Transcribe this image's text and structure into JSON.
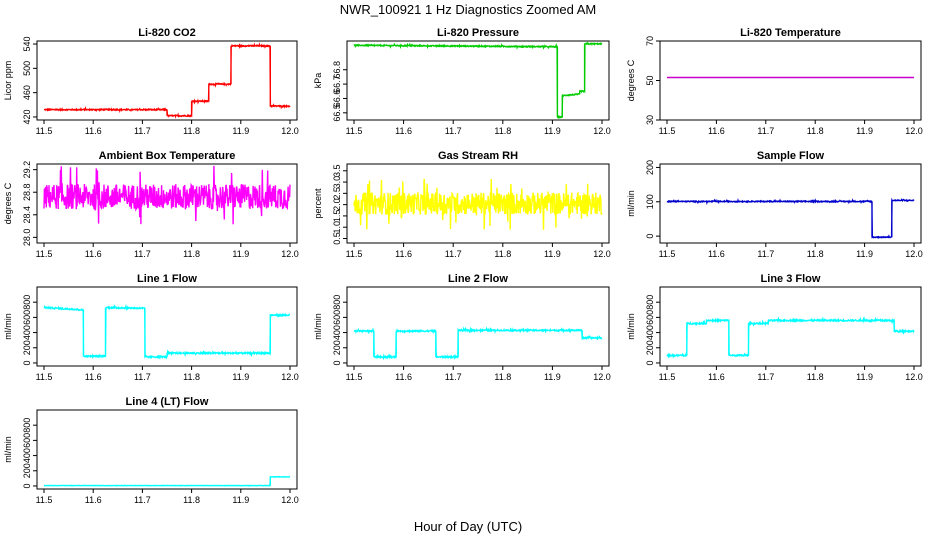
{
  "figure": {
    "title": "NWR_100921  1 Hz Diagnostics Zoomed AM",
    "xlabel": "Hour of Day (UTC)"
  },
  "chart_data": [
    {
      "type": "line",
      "title": "Li-820 CO2",
      "ylabel": "Licor ppm",
      "color": "#ff0000",
      "xlim": [
        11.5,
        12.0
      ],
      "ylim": [
        415,
        545
      ],
      "xticks": [
        "11.5",
        "11.6",
        "11.7",
        "11.8",
        "11.9",
        "12.0"
      ],
      "yticks": [
        "420",
        "460",
        "500",
        "540"
      ],
      "noise": 1,
      "series": [
        {
          "name": "CO2",
          "x": [
            11.5,
            11.75,
            11.75,
            11.8,
            11.8,
            11.835,
            11.835,
            11.88,
            11.88,
            11.96,
            11.96,
            12.0
          ],
          "y": [
            432,
            432,
            422,
            422,
            446,
            446,
            474,
            474,
            537,
            537,
            438,
            438
          ]
        }
      ]
    },
    {
      "type": "line",
      "title": "Li-820 Pressure",
      "ylabel": "kPa",
      "color": "#00cc00",
      "xlim": [
        11.5,
        12.0
      ],
      "ylim": [
        66.45,
        67.0
      ],
      "xticks": [
        "11.5",
        "11.6",
        "11.7",
        "11.8",
        "11.9",
        "12.0"
      ],
      "yticks": [
        "66.5",
        "66.6",
        "66.7",
        "66.8"
      ],
      "noise": 0.004,
      "series": [
        {
          "name": "Pressure",
          "x": [
            11.5,
            11.91,
            11.91,
            11.92,
            11.92,
            11.955,
            11.955,
            11.965,
            11.965,
            12.0
          ],
          "y": [
            66.97,
            66.96,
            66.47,
            66.47,
            66.62,
            66.63,
            66.65,
            66.65,
            66.98,
            66.98
          ]
        }
      ]
    },
    {
      "type": "line",
      "title": "Li-820 Temperature",
      "ylabel": "degrees C",
      "color": "#cc00cc",
      "xlim": [
        11.5,
        12.0
      ],
      "ylim": [
        30,
        70
      ],
      "xticks": [
        "11.5",
        "11.6",
        "11.7",
        "11.8",
        "11.9",
        "12.0"
      ],
      "yticks": [
        "30",
        "50",
        "70"
      ],
      "noise": 0,
      "series": [
        {
          "name": "Temperature",
          "x": [
            11.5,
            12.0
          ],
          "y": [
            51.5,
            51.5
          ]
        }
      ]
    },
    {
      "type": "line",
      "title": "Ambient Box Temperature",
      "ylabel": "degrees C",
      "color": "#ff00ff",
      "xlim": [
        11.5,
        12.0
      ],
      "ylim": [
        27.9,
        29.3
      ],
      "xticks": [
        "11.5",
        "11.6",
        "11.7",
        "11.8",
        "11.9",
        "12.0"
      ],
      "yticks": [
        "28.0",
        "28.4",
        "28.8",
        "29.2"
      ],
      "noise": 0.25,
      "series": [
        {
          "name": "Ambient",
          "x": [
            11.5,
            12.0
          ],
          "y": [
            28.72,
            28.72
          ]
        }
      ]
    },
    {
      "type": "line",
      "title": "Gas Stream RH",
      "ylabel": "percent",
      "color": "#ffff00",
      "xlim": [
        11.5,
        12.0
      ],
      "ylim": [
        0.3,
        3.8
      ],
      "xticks": [
        "11.5",
        "11.6",
        "11.7",
        "11.8",
        "11.9",
        "12.0"
      ],
      "yticks": [
        "0.5",
        "1.0",
        "1.5",
        "2.0",
        "2.5",
        "3.0",
        "3.5"
      ],
      "noise": 0.55,
      "series": [
        {
          "name": "RH",
          "x": [
            11.5,
            12.0
          ],
          "y": [
            2.05,
            2.05
          ]
        }
      ]
    },
    {
      "type": "line",
      "title": "Sample Flow",
      "ylabel": "ml/min",
      "color": "#0000cc",
      "xlim": [
        11.5,
        12.0
      ],
      "ylim": [
        -20,
        210
      ],
      "xticks": [
        "11.5",
        "11.6",
        "11.7",
        "11.8",
        "11.9",
        "12.0"
      ],
      "yticks": [
        "0",
        "100",
        "200"
      ],
      "noise": 1.5,
      "series": [
        {
          "name": "Sample",
          "x": [
            11.5,
            11.915,
            11.915,
            11.955,
            11.955,
            12.0
          ],
          "y": [
            101,
            101,
            -3,
            -3,
            104,
            104
          ]
        }
      ]
    },
    {
      "type": "line",
      "title": "Line 1 Flow",
      "ylabel": "ml/min",
      "color": "#00ffff",
      "xlim": [
        11.5,
        12.0
      ],
      "ylim": [
        -40,
        1000
      ],
      "xticks": [
        "11.5",
        "11.6",
        "11.7",
        "11.8",
        "11.9",
        "12.0"
      ],
      "yticks": [
        "0",
        "200",
        "400",
        "600",
        "800"
      ],
      "noise": 10,
      "series": [
        {
          "name": "Line 1",
          "x": [
            11.5,
            11.58,
            11.58,
            11.625,
            11.625,
            11.705,
            11.705,
            11.75,
            11.75,
            11.96,
            11.96,
            12.0
          ],
          "y": [
            730,
            700,
            90,
            90,
            730,
            720,
            80,
            80,
            130,
            130,
            630,
            630
          ]
        }
      ]
    },
    {
      "type": "line",
      "title": "Line 2 Flow",
      "ylabel": "ml/min",
      "color": "#00ffff",
      "xlim": [
        11.5,
        12.0
      ],
      "ylim": [
        -40,
        1000
      ],
      "xticks": [
        "11.5",
        "11.6",
        "11.7",
        "11.8",
        "11.9",
        "12.0"
      ],
      "yticks": [
        "0",
        "200",
        "400",
        "600",
        "800"
      ],
      "noise": 10,
      "series": [
        {
          "name": "Line 2",
          "x": [
            11.5,
            11.54,
            11.54,
            11.585,
            11.585,
            11.665,
            11.665,
            11.71,
            11.71,
            11.96,
            11.96,
            12.0
          ],
          "y": [
            420,
            420,
            80,
            80,
            420,
            420,
            80,
            80,
            430,
            430,
            330,
            330
          ]
        }
      ]
    },
    {
      "type": "line",
      "title": "Line 3 Flow",
      "ylabel": "ml/min",
      "color": "#00ffff",
      "xlim": [
        11.5,
        12.0
      ],
      "ylim": [
        -40,
        1000
      ],
      "xticks": [
        "11.5",
        "11.6",
        "11.7",
        "11.8",
        "11.9",
        "12.0"
      ],
      "yticks": [
        "0",
        "200",
        "400",
        "600",
        "800"
      ],
      "noise": 10,
      "series": [
        {
          "name": "Line 3",
          "x": [
            11.5,
            11.54,
            11.54,
            11.58,
            11.58,
            11.625,
            11.625,
            11.665,
            11.665,
            11.705,
            11.705,
            11.96,
            11.96,
            12.0
          ],
          "y": [
            100,
            100,
            520,
            520,
            560,
            560,
            100,
            100,
            520,
            520,
            560,
            560,
            420,
            420
          ]
        }
      ]
    },
    {
      "type": "line",
      "title": "Line 4 (LT) Flow",
      "ylabel": "ml/min",
      "color": "#00ffff",
      "xlim": [
        11.5,
        12.0
      ],
      "ylim": [
        -40,
        1000
      ],
      "xticks": [
        "11.5",
        "11.6",
        "11.7",
        "11.8",
        "11.9",
        "12.0"
      ],
      "yticks": [
        "0",
        "200",
        "400",
        "600",
        "800"
      ],
      "noise": 2,
      "series": [
        {
          "name": "Line 4",
          "x": [
            11.5,
            11.96,
            11.96,
            12.0
          ],
          "y": [
            5,
            5,
            120,
            120
          ]
        }
      ]
    }
  ]
}
